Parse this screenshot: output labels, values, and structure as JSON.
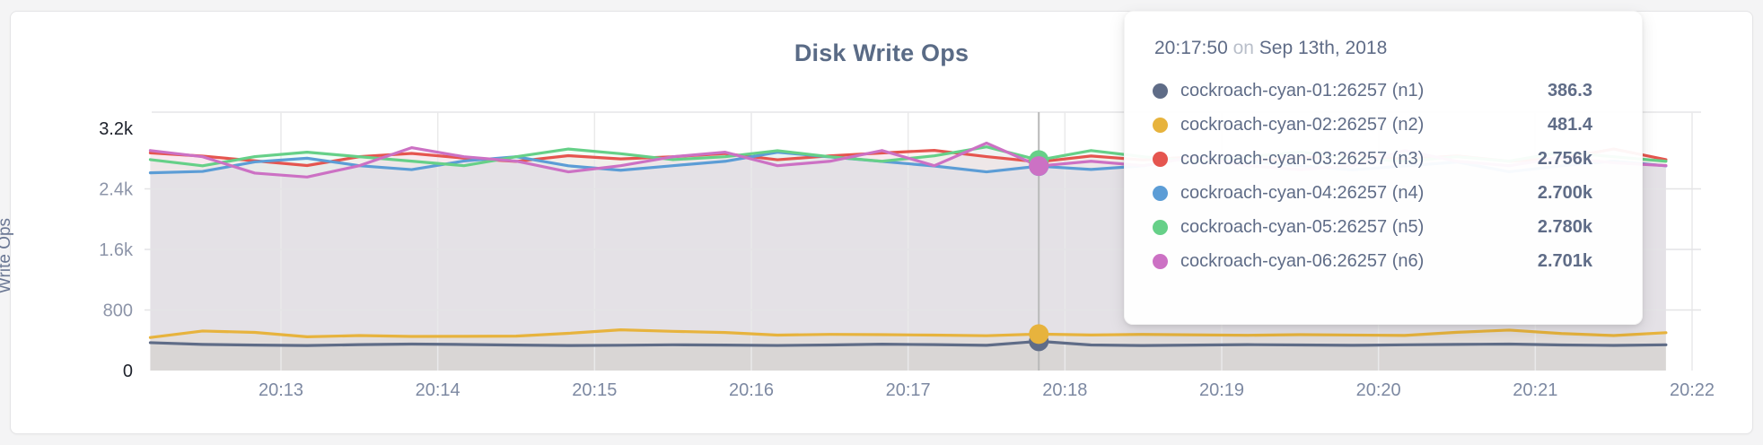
{
  "card": {
    "title": "Disk Write Ops",
    "y_axis_label": "Write Ops"
  },
  "tooltip": {
    "time": "20:17:50",
    "connector": "on",
    "date": "Sep 13th, 2018",
    "rows": [
      {
        "label": "cockroach-cyan-01:26257 (n1)",
        "value": "386.3"
      },
      {
        "label": "cockroach-cyan-02:26257 (n2)",
        "value": "481.4"
      },
      {
        "label": "cockroach-cyan-03:26257 (n3)",
        "value": "2.756k"
      },
      {
        "label": "cockroach-cyan-04:26257 (n4)",
        "value": "2.700k"
      },
      {
        "label": "cockroach-cyan-05:26257 (n5)",
        "value": "2.780k"
      },
      {
        "label": "cockroach-cyan-06:26257 (n6)",
        "value": "2.701k"
      }
    ]
  },
  "chart_data": {
    "type": "line",
    "title": "Disk Write Ops",
    "ylabel": "Write Ops",
    "grid": true,
    "legend_position": "tooltip-overlay",
    "ylim": [
      0,
      3413
    ],
    "y_ticks": [
      {
        "v": 0,
        "label": "0",
        "strong": true
      },
      {
        "v": 800,
        "label": "800",
        "strong": false
      },
      {
        "v": 1600,
        "label": "1.6k",
        "strong": false
      },
      {
        "v": 2400,
        "label": "2.4k",
        "strong": false
      },
      {
        "v": 3200,
        "label": "3.2k",
        "strong": true
      }
    ],
    "x_ticks": [
      {
        "t": 0,
        "label": "20:13"
      },
      {
        "t": 60,
        "label": "20:14"
      },
      {
        "t": 120,
        "label": "20:15"
      },
      {
        "t": 180,
        "label": "20:16"
      },
      {
        "t": 240,
        "label": "20:17"
      },
      {
        "t": 300,
        "label": "20:18"
      },
      {
        "t": 360,
        "label": "20:19"
      },
      {
        "t": 420,
        "label": "20:20"
      },
      {
        "t": 480,
        "label": "20:21"
      },
      {
        "t": 540,
        "label": "20:22"
      }
    ],
    "x_seconds_from_2013": [
      -50,
      -30,
      -10,
      10,
      30,
      50,
      70,
      90,
      110,
      130,
      150,
      170,
      190,
      210,
      230,
      250,
      270,
      290,
      310,
      330,
      350,
      370,
      390,
      410,
      430,
      450,
      470,
      490,
      510,
      530
    ],
    "hover": {
      "index": 17,
      "time_label": "20:17:50",
      "date_label": "Sep 13th, 2018"
    },
    "series": [
      {
        "name": "cockroach-cyan-01:26257 (n1)",
        "color": "#5f6c87",
        "values": [
          368,
          345,
          336,
          330,
          342,
          350,
          344,
          336,
          330,
          334,
          340,
          336,
          331,
          338,
          348,
          342,
          333,
          386.3,
          338,
          330,
          336,
          342,
          338,
          333,
          340,
          345,
          350,
          338,
          332,
          340
        ]
      },
      {
        "name": "cockroach-cyan-02:26257 (n2)",
        "color": "#e7b33d",
        "values": [
          436,
          522,
          504,
          446,
          462,
          450,
          452,
          455,
          492,
          538,
          518,
          502,
          468,
          478,
          474,
          468,
          460,
          481.4,
          470,
          477,
          471,
          466,
          474,
          469,
          464,
          505,
          534,
          489,
          462,
          500
        ]
      },
      {
        "name": "cockroach-cyan-03:26257 (n3)",
        "color": "#e5554f",
        "values": [
          2875,
          2832,
          2770,
          2708,
          2825,
          2868,
          2806,
          2762,
          2838,
          2795,
          2824,
          2866,
          2784,
          2836,
          2874,
          2908,
          2826,
          2756,
          2834,
          2782,
          2824,
          2764,
          2806,
          2852,
          2792,
          2836,
          2764,
          2804,
          2926,
          2786
        ]
      },
      {
        "name": "cockroach-cyan-04:26257 (n4)",
        "color": "#5c9dd6",
        "values": [
          2612,
          2630,
          2756,
          2804,
          2706,
          2654,
          2768,
          2824,
          2704,
          2646,
          2706,
          2764,
          2884,
          2822,
          2762,
          2702,
          2624,
          2700,
          2656,
          2704,
          2826,
          2766,
          2704,
          2652,
          2702,
          2754,
          2626,
          2704,
          2766,
          2704
        ]
      },
      {
        "name": "cockroach-cyan-05:26257 (n5)",
        "color": "#66d088",
        "values": [
          2786,
          2704,
          2826,
          2884,
          2824,
          2766,
          2706,
          2824,
          2926,
          2864,
          2786,
          2824,
          2904,
          2824,
          2764,
          2836,
          2954,
          2780,
          2906,
          2824,
          2764,
          2824,
          2884,
          2804,
          2764,
          2824,
          2766,
          2884,
          2824,
          2764
        ]
      },
      {
        "name": "cockroach-cyan-06:26257 (n6)",
        "color": "#cc71c4",
        "values": [
          2906,
          2824,
          2608,
          2556,
          2706,
          2944,
          2824,
          2766,
          2624,
          2706,
          2824,
          2884,
          2706,
          2764,
          2906,
          2706,
          3004,
          2701,
          2764,
          2706,
          2824,
          2706,
          2654,
          2706,
          2906,
          2764,
          2706,
          2814,
          2744,
          2706
        ]
      }
    ]
  }
}
